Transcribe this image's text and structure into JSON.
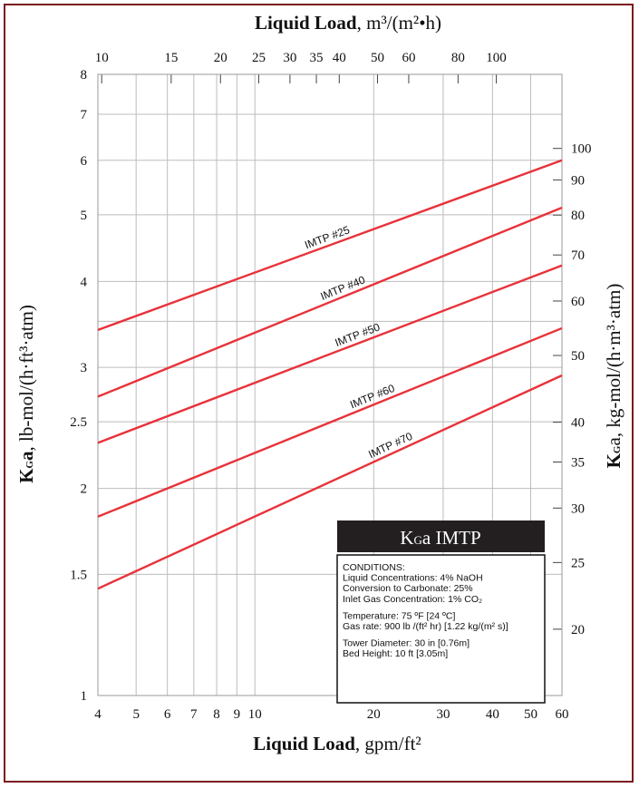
{
  "chart_data": {
    "type": "line",
    "title_top": {
      "bold": "Liquid Load",
      "unit": ", m³/(m²•h)"
    },
    "xlabel": {
      "bold": "Liquid Load",
      "unit": ", gpm/ft²"
    },
    "ylabel_left": {
      "bold": "KGa",
      "bold_main": "K",
      "bold_sub": "G",
      "bold_tail": "a",
      "unit": ", lb-mol/(h·ft³·atm)"
    },
    "ylabel_right": {
      "main": "K",
      "sub": "G",
      "tail": "a, kg-mol/(h·m³·atm)"
    },
    "x_scale": "log",
    "y_scale": "log",
    "xlim": [
      4,
      60
    ],
    "ylim": [
      1,
      8
    ],
    "x_ticks": [
      {
        "v": 4,
        "label": "4"
      },
      {
        "v": 5,
        "label": "5"
      },
      {
        "v": 6,
        "label": "6"
      },
      {
        "v": 7,
        "label": "7"
      },
      {
        "v": 8,
        "label": "8"
      },
      {
        "v": 9,
        "label": "9"
      },
      {
        "v": 10,
        "label": "10"
      },
      {
        "v": 20,
        "label": "20"
      },
      {
        "v": 30,
        "label": "30"
      },
      {
        "v": 40,
        "label": "40"
      },
      {
        "v": 50,
        "label": "50"
      },
      {
        "v": 60,
        "label": "60"
      }
    ],
    "y_ticks": [
      {
        "v": 1,
        "label": "1"
      },
      {
        "v": 1.5,
        "label": "1.5"
      },
      {
        "v": 2,
        "label": "2"
      },
      {
        "v": 2.5,
        "label": "2.5"
      },
      {
        "v": 3,
        "label": "3"
      },
      {
        "v": 4,
        "label": "4"
      },
      {
        "v": 5,
        "label": "5"
      },
      {
        "v": 6,
        "label": "6"
      },
      {
        "v": 7,
        "label": "7"
      },
      {
        "v": 8,
        "label": "8"
      }
    ],
    "top_ticks": [
      {
        "v": 10,
        "label": "10"
      },
      {
        "v": 15,
        "label": "15"
      },
      {
        "v": 20,
        "label": "20"
      },
      {
        "v": 25,
        "label": "25"
      },
      {
        "v": 30,
        "label": "30"
      },
      {
        "v": 35,
        "label": "35"
      },
      {
        "v": 40,
        "label": "40"
      },
      {
        "v": 50,
        "label": "50"
      },
      {
        "v": 60,
        "label": "60"
      },
      {
        "v": 80,
        "label": "80"
      },
      {
        "v": 100,
        "label": "100"
      }
    ],
    "right_ticks": [
      {
        "v": 20,
        "label": "20"
      },
      {
        "v": 25,
        "label": "25"
      },
      {
        "v": 30,
        "label": "30"
      },
      {
        "v": 35,
        "label": "35"
      },
      {
        "v": 40,
        "label": "40"
      },
      {
        "v": 50,
        "label": "50"
      },
      {
        "v": 60,
        "label": "60"
      },
      {
        "v": 70,
        "label": "70"
      },
      {
        "v": 80,
        "label": "80"
      },
      {
        "v": 90,
        "label": "90"
      },
      {
        "v": 100,
        "label": "100"
      }
    ],
    "series": [
      {
        "name": "IMTP #25",
        "x": [
          4,
          60
        ],
        "y": [
          3.4,
          6.0
        ],
        "label_x": 15.5
      },
      {
        "name": "IMTP #40",
        "x": [
          4,
          60
        ],
        "y": [
          2.72,
          5.12
        ],
        "label_x": 17.0
      },
      {
        "name": "IMTP #50",
        "x": [
          4,
          60
        ],
        "y": [
          2.33,
          4.22
        ],
        "label_x": 18.5
      },
      {
        "name": "IMTP #60",
        "x": [
          4,
          60
        ],
        "y": [
          1.82,
          3.42
        ],
        "label_x": 20.2
      },
      {
        "name": "IMTP #70",
        "x": [
          4,
          60
        ],
        "y": [
          1.43,
          2.92
        ],
        "label_x": 22.5
      }
    ],
    "grid": true,
    "colors": {
      "series": "#e8323a",
      "grid": "#bdbdbd",
      "border": "#7b1c20",
      "legend_head": "#231f20"
    }
  },
  "legend_box": {
    "title_main": "K",
    "title_sub": "G",
    "title_tail": "a IMTP",
    "conditions_heading": "CONDITIONS:",
    "lines": [
      "Liquid Concentrations: 4% NaOH",
      "Conversion to Carbonate: 25%",
      "Inlet Gas Concentration: 1% CO₂",
      "",
      "Temperature: 75 ºF [24 ºC]",
      "Gas rate: 900 lb /(ft² hr)  [1.22 kg/(m² s)]",
      "",
      "Tower Diameter: 30 in  [0.76m]",
      "Bed Height: 10 ft  [3.05m]"
    ]
  }
}
